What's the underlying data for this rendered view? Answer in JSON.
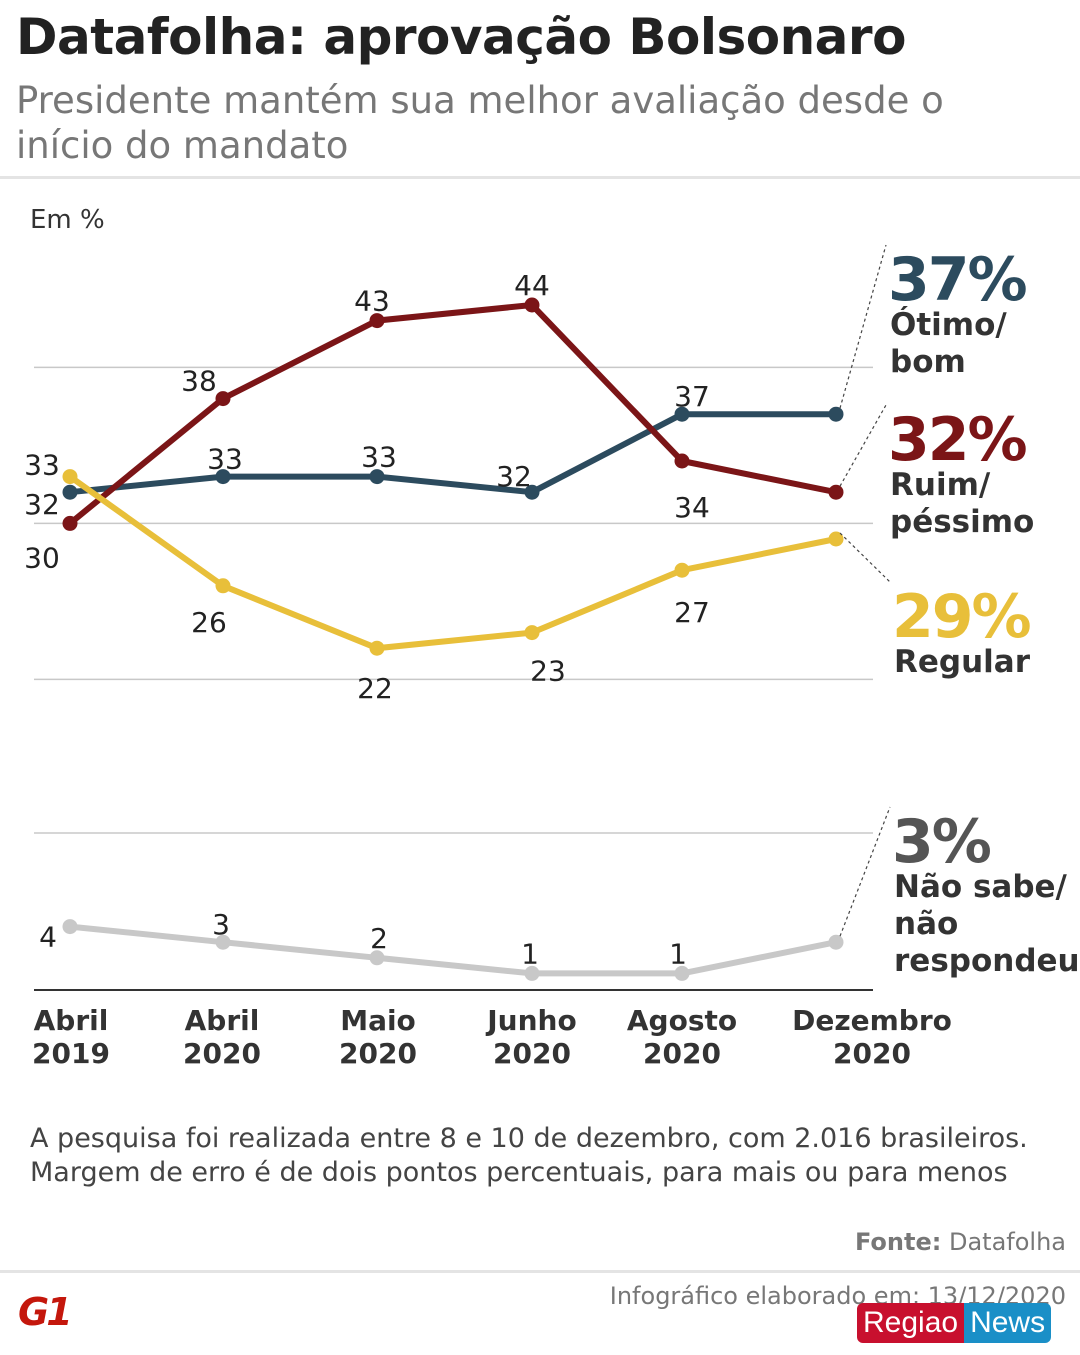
{
  "title": "Datafolha: aprovação Bolsonaro",
  "subtitle": "Presidente mantém sua melhor avaliação desde o início do mandato",
  "unit_label": "Em %",
  "note_lines": [
    "A pesquisa foi realizada entre 8 e 10 de dezembro, com 2.016 brasileiros.",
    "Margem de erro é de dois pontos percentuais, para mais ou para menos"
  ],
  "source_label": "Fonte:",
  "source_value": "Datafolha",
  "made_label": "Infográfico elaborado em: 13/12/2020",
  "logo_text": "G1",
  "watermark": {
    "part1": "Regiao",
    "part2": "News"
  },
  "chart_data": {
    "type": "line",
    "categories": [
      [
        "Abril",
        "2019"
      ],
      [
        "Abril",
        "2020"
      ],
      [
        "Maio",
        "2020"
      ],
      [
        "Junho",
        "2020"
      ],
      [
        "Agosto",
        "2020"
      ],
      [
        "Dezembro",
        "2020"
      ]
    ],
    "grid": true,
    "panels": [
      {
        "ylim": [
          20,
          44
        ],
        "gridlines": [
          20,
          30,
          40
        ]
      },
      {
        "ylim": [
          0,
          10
        ],
        "gridlines": [
          10
        ]
      }
    ],
    "series": [
      {
        "key": "otimo",
        "name": "Ótimo/ bom",
        "name_lines": [
          "Ótimo/",
          "bom"
        ],
        "end_label": "37%",
        "color": "#2c4b5e",
        "panel": 0,
        "values": [
          32,
          33,
          33,
          32,
          37,
          37
        ]
      },
      {
        "key": "ruim",
        "name": "Ruim/ péssimo",
        "name_lines": [
          "Ruim/",
          "péssimo"
        ],
        "end_label": "32%",
        "color": "#7b1517",
        "panel": 0,
        "values": [
          30,
          38,
          43,
          44,
          34,
          32
        ]
      },
      {
        "key": "regular",
        "name": "Regular",
        "name_lines": [
          "Regular"
        ],
        "end_label": "29%",
        "color": "#e8bf3a",
        "panel": 0,
        "values": [
          33,
          26,
          22,
          23,
          27,
          29
        ]
      },
      {
        "key": "nsnr",
        "name": "Não sabe/ não respondeu",
        "name_lines": [
          "Não sabe/",
          "não",
          "respondeu"
        ],
        "end_label": "3%",
        "color": "#c8c8c8",
        "label_color": "#555555",
        "panel": 1,
        "values": [
          4,
          3,
          2,
          1,
          1,
          3
        ]
      }
    ]
  }
}
